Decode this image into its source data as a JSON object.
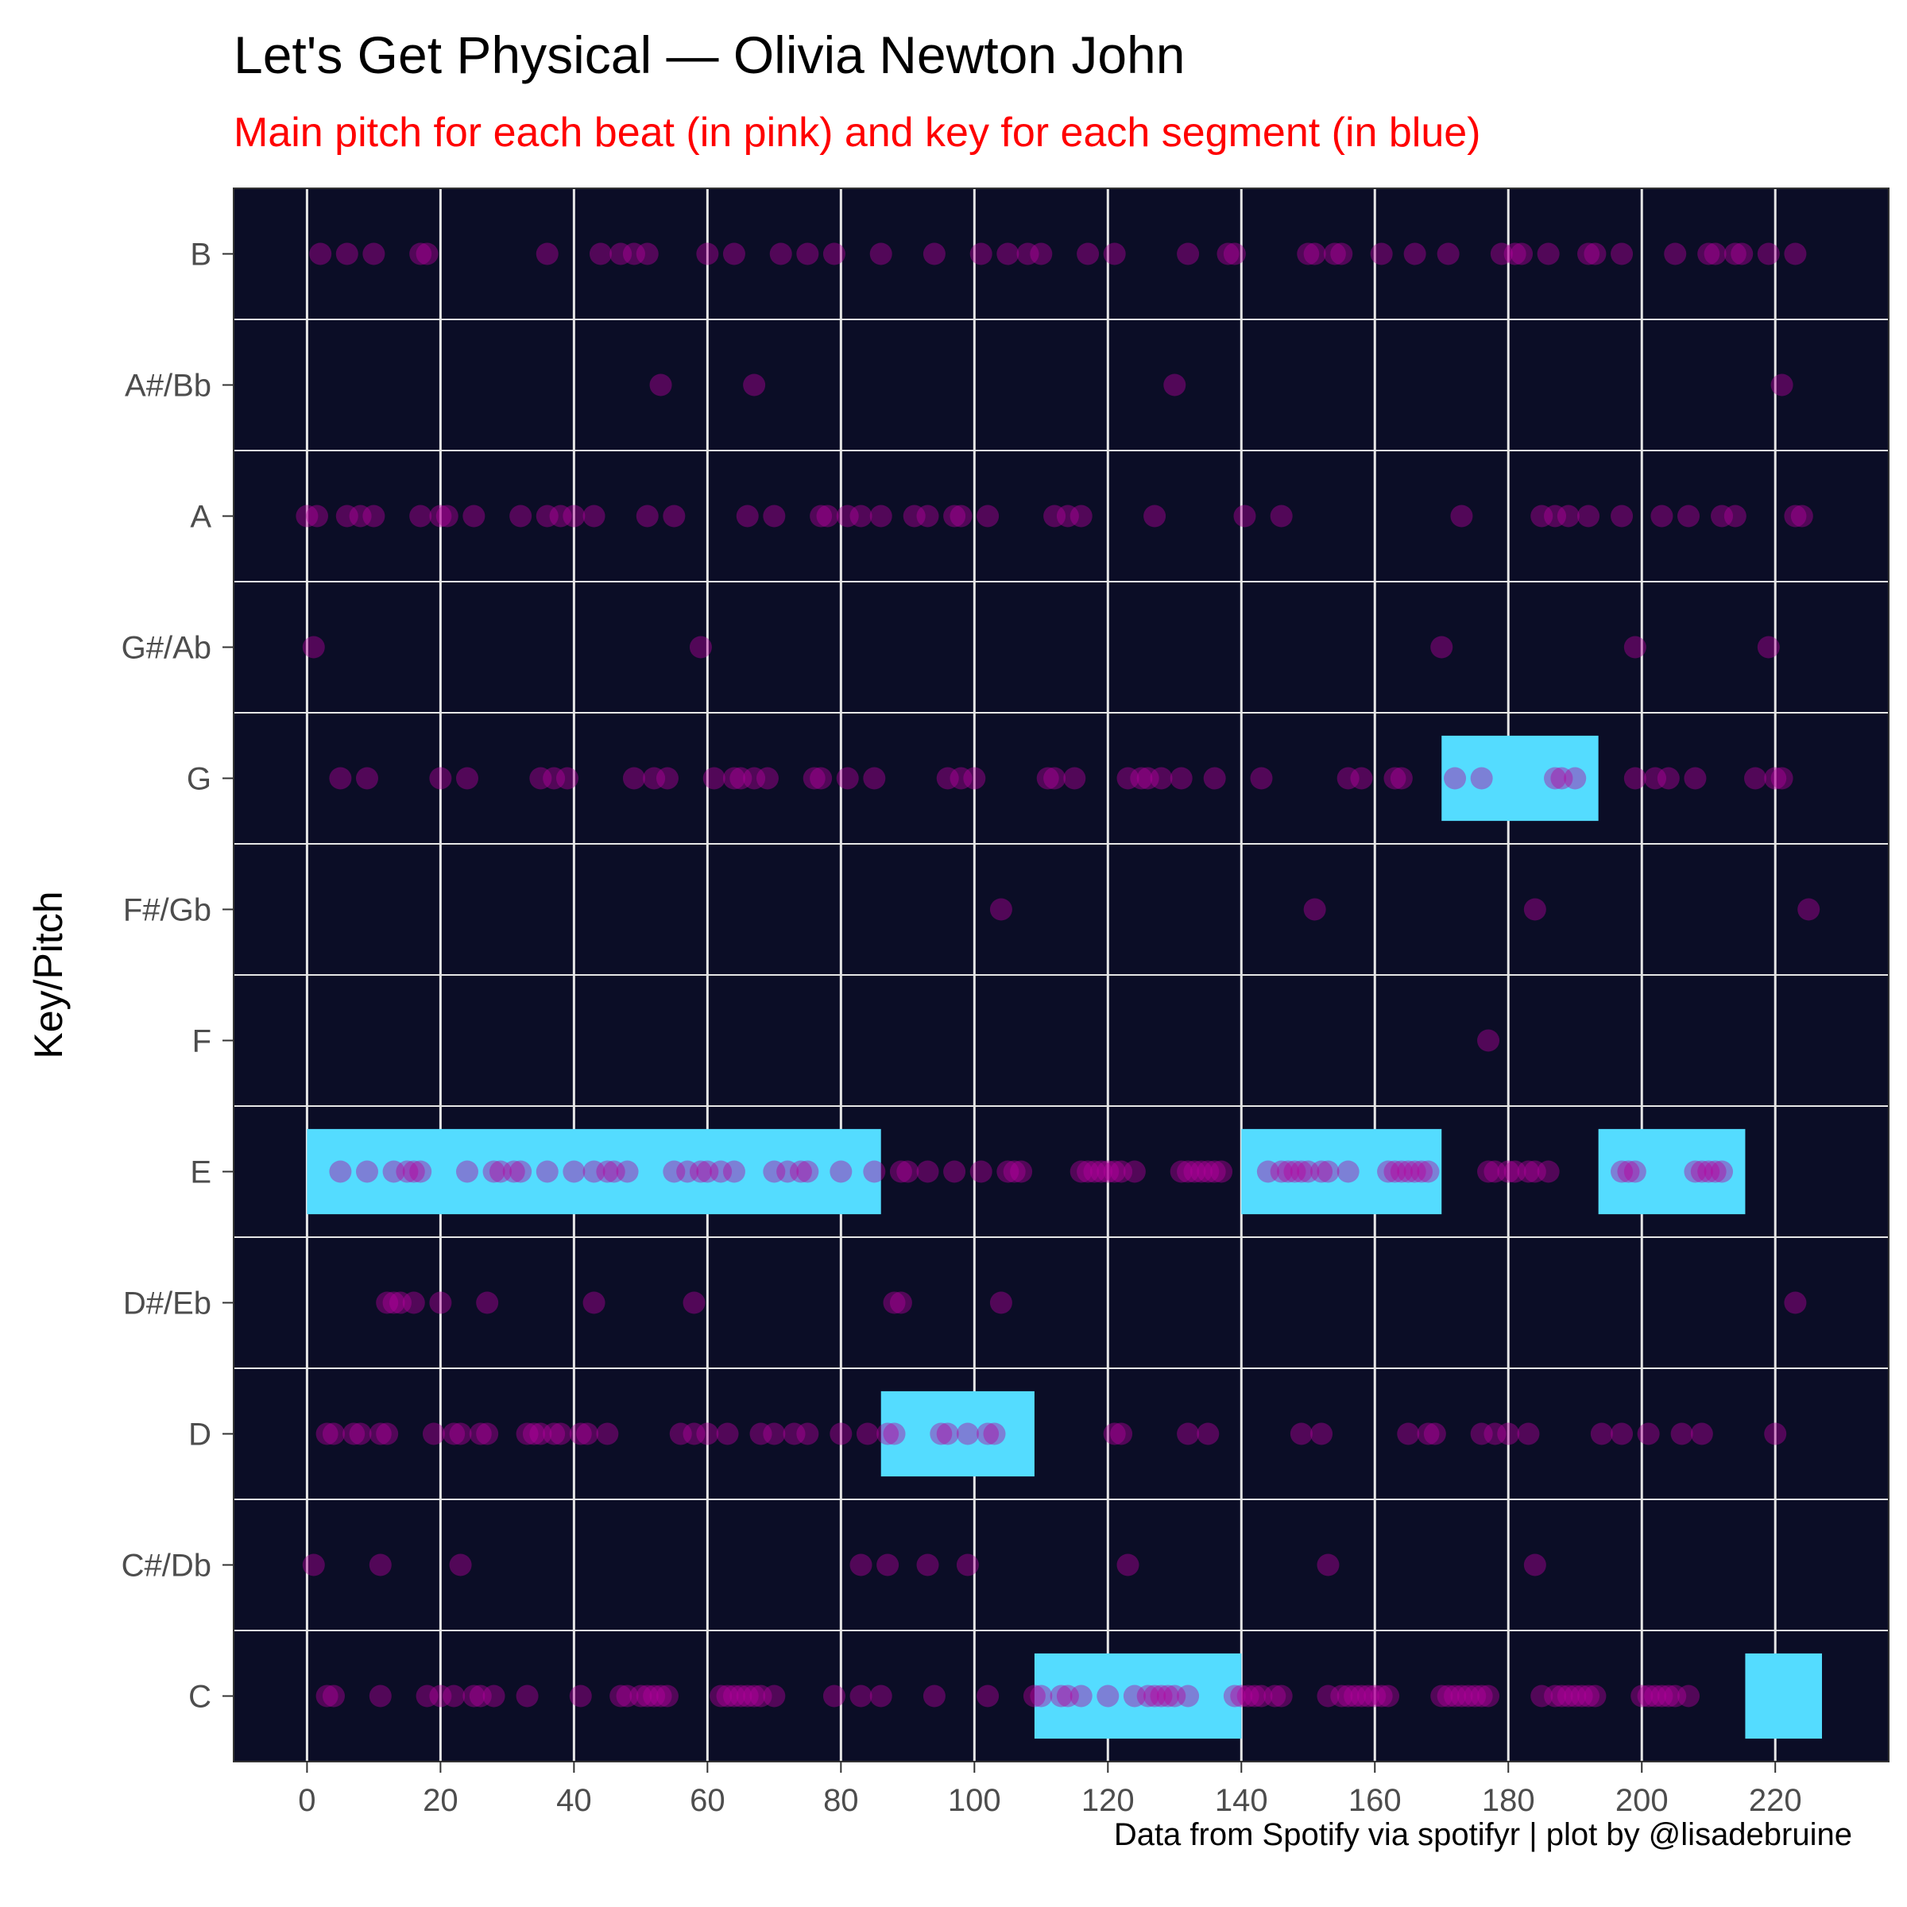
{
  "chart_data": {
    "type": "scatter",
    "title": "Let's Get Physical — Olivia Newton John",
    "subtitle": "Main pitch for each beat (in pink) and key for each segment (in blue)",
    "ylabel": "Key/Pitch",
    "xlabel": "",
    "caption": "Data from Spotify via spotifyr | plot by @lisadebruine",
    "xlim": [
      -11,
      237
    ],
    "x_ticks": [
      0,
      20,
      40,
      60,
      80,
      100,
      120,
      140,
      160,
      180,
      200,
      220
    ],
    "categories": [
      "C",
      "C#/Db",
      "D",
      "D#/Eb",
      "E",
      "F",
      "F#/Gb",
      "G",
      "G#/Ab",
      "A",
      "A#/Bb",
      "B"
    ],
    "grid": true,
    "legend": "none",
    "colors": {
      "panel_background": "#0b0d26",
      "grid": "#e6e6e6",
      "beat_points": "#b5009e",
      "key_segments": "#54dcff"
    },
    "key_segments": [
      {
        "key": "E",
        "start": 0,
        "end": 86
      },
      {
        "key": "D",
        "start": 86,
        "end": 109
      },
      {
        "key": "C",
        "start": 109,
        "end": 140
      },
      {
        "key": "E",
        "start": 140,
        "end": 170
      },
      {
        "key": "G",
        "start": 170,
        "end": 193.5
      },
      {
        "key": "E",
        "start": 193.5,
        "end": 215.5
      },
      {
        "key": "C",
        "start": 215.5,
        "end": 227
      }
    ],
    "beats": {
      "B": [
        2,
        6,
        10,
        17,
        18,
        36,
        44,
        47,
        49,
        51,
        60,
        64,
        71,
        75,
        79,
        86,
        94,
        101,
        105,
        108,
        110,
        117,
        121,
        132,
        138,
        139,
        150,
        151,
        154,
        155,
        161,
        166,
        171,
        179,
        181,
        182,
        186,
        192,
        193,
        197,
        205,
        210,
        211,
        214,
        215,
        219,
        223
      ],
      "A#/Bb": [
        53,
        67,
        130,
        221
      ],
      "A": [
        0,
        1.5,
        6,
        8,
        10,
        17,
        20,
        21,
        25,
        32,
        36,
        38,
        40,
        43,
        51,
        55,
        66,
        70,
        77,
        78,
        81,
        83,
        86,
        91,
        93,
        97,
        98,
        102,
        112,
        114,
        116,
        127,
        140.5,
        146,
        173,
        185,
        187,
        189,
        192,
        197,
        203,
        207,
        212,
        214,
        223,
        224
      ],
      "G#/Ab": [
        1,
        59,
        170,
        199,
        219
      ],
      "G": [
        5,
        9,
        20,
        24,
        35,
        37,
        39,
        49,
        52,
        54,
        61,
        64,
        65,
        67,
        69,
        76,
        77,
        81,
        85,
        96,
        98,
        100,
        111,
        112,
        115,
        123,
        125,
        126,
        128,
        131,
        136,
        143,
        156,
        158,
        163,
        164,
        172,
        176,
        187,
        188,
        190,
        199,
        202,
        204,
        208,
        217,
        220,
        221
      ],
      "F#/Gb": [
        104,
        151,
        184,
        225
      ],
      "F": [
        177
      ],
      "E": [
        5,
        9,
        13,
        15,
        16,
        17,
        24,
        28,
        29,
        31,
        32,
        36,
        40,
        43,
        45,
        46,
        48,
        55,
        57,
        59,
        60,
        62,
        64,
        70,
        72,
        74,
        75,
        80,
        85,
        89,
        90,
        93,
        97,
        101,
        105,
        106,
        107,
        116,
        117,
        118,
        119,
        120,
        121,
        122,
        124,
        131,
        132,
        133,
        134,
        135,
        136,
        137,
        144,
        146,
        147,
        148,
        149,
        150,
        152,
        153,
        156,
        162,
        163,
        164,
        165,
        166,
        167,
        168,
        177,
        178,
        180,
        181,
        183,
        184,
        186,
        197,
        198,
        199,
        208,
        209,
        210,
        211,
        212
      ],
      "D#/Eb": [
        12,
        13,
        14,
        16,
        20,
        27,
        43,
        58,
        88,
        89,
        104,
        223
      ],
      "D": [
        3,
        4,
        7,
        8,
        11,
        12,
        19,
        22,
        23,
        26,
        27,
        33,
        34,
        35,
        37,
        38,
        41,
        42,
        45,
        56,
        58,
        60,
        63,
        68,
        70,
        73,
        75,
        80,
        84,
        87,
        88,
        95,
        96,
        99,
        102,
        103,
        121,
        122,
        132,
        135,
        149,
        152,
        165,
        168,
        169,
        176,
        178,
        180,
        183,
        194,
        197,
        201,
        206,
        209,
        220
      ],
      "C#/Db": [
        1,
        11,
        23,
        83,
        87,
        93,
        99,
        123,
        153,
        184
      ],
      "C": [
        3,
        4,
        11,
        18,
        20,
        22,
        25,
        26,
        28,
        33,
        41,
        47,
        48,
        50,
        51,
        52,
        53,
        54,
        62,
        63,
        64,
        65,
        66,
        67,
        68,
        70,
        79,
        83,
        86,
        94,
        102,
        109,
        110,
        113,
        114,
        116,
        120,
        124,
        126,
        127,
        128,
        129,
        130,
        132,
        139,
        140,
        141,
        142,
        143,
        145,
        146,
        153,
        155,
        156,
        157,
        158,
        159,
        160,
        161,
        162,
        170,
        171,
        172,
        173,
        174,
        175,
        176,
        177,
        185,
        187,
        188,
        189,
        190,
        191,
        192,
        193,
        200,
        201,
        202,
        203,
        204,
        205,
        207
      ]
    }
  }
}
